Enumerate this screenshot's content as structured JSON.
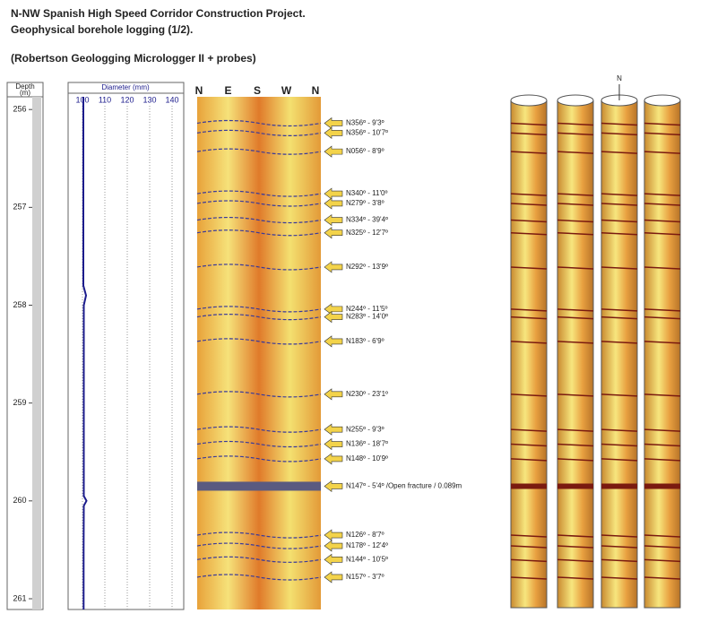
{
  "header": {
    "title_lines": [
      "N-NW Spanish High Speed Corridor Construction Project.",
      "Geophysical borehole logging (1/2)."
    ],
    "subtitle": "(Robertson Geologging Micrologger II + probes)"
  },
  "chart_data": {
    "type": "line",
    "xlabel": [
      "Depth",
      "(m)"
    ],
    "ylabel": "Diameter (mm)",
    "x": [
      255.87,
      256.5,
      257.0,
      257.5,
      257.8,
      257.9,
      258.0,
      258.5,
      259.0,
      259.5,
      259.95,
      260.0,
      260.05,
      260.5,
      261.11
    ],
    "values": [
      100.4,
      100.4,
      100.4,
      100.4,
      100.4,
      101.6,
      100.6,
      100.6,
      100.6,
      100.6,
      100.6,
      101.8,
      100.6,
      100.5,
      100.5
    ],
    "color": "#1c1c8c",
    "xlim": [
      255.87,
      261.11
    ],
    "xticks": [
      256,
      257,
      258,
      259,
      260,
      261
    ],
    "ylim": [
      93.6,
      145.2
    ],
    "yticks": [
      100,
      110,
      120,
      130,
      140
    ],
    "grid": true
  },
  "image_log": {
    "orientation_labels": [
      "N",
      "E",
      "S",
      "W",
      "N"
    ],
    "fractures": [
      {
        "label": "N356º - 9'3º",
        "depth": 256.14
      },
      {
        "label": "N356º - 10'7º",
        "depth": 256.24
      },
      {
        "label": "N056º - 8'9º",
        "depth": 256.43
      },
      {
        "label": "N340º - 11'0º",
        "depth": 256.86
      },
      {
        "label": "N279º - 3'8º",
        "depth": 256.96
      },
      {
        "label": "N334º - 39'4º",
        "depth": 257.13
      },
      {
        "label": "N325º - 12'7º",
        "depth": 257.26
      },
      {
        "label": "N292º - 13'9º",
        "depth": 257.61
      },
      {
        "label": "N244º - 11'5º",
        "depth": 258.04
      },
      {
        "label": "N283º - 14'0º",
        "depth": 258.12
      },
      {
        "label": "N183º - 6'9º",
        "depth": 258.37
      },
      {
        "label": "N230º - 23'1º",
        "depth": 258.91
      },
      {
        "label": "N255º - 9'3º",
        "depth": 259.27
      },
      {
        "label": "N136º - 18'7º",
        "depth": 259.42
      },
      {
        "label": "N148º - 10'9º",
        "depth": 259.57
      },
      {
        "label": "N147º - 5'4º /Open fracture / 0.089m",
        "depth": 259.85
      },
      {
        "label": "N126º - 8'7º",
        "depth": 260.35
      },
      {
        "label": "N178º - 12'4º",
        "depth": 260.46
      },
      {
        "label": "N144º - 10'5º",
        "depth": 260.6
      },
      {
        "label": "N157º - 3'7º",
        "depth": 260.78
      }
    ]
  },
  "cylinders": {
    "north_label": "N"
  }
}
